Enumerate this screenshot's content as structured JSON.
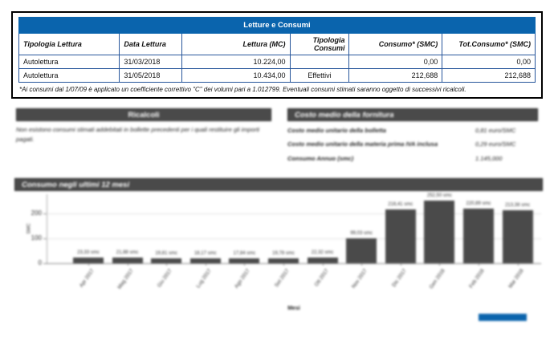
{
  "letture": {
    "title": "Letture e Consumi",
    "columns": [
      "Tipologia Lettura",
      "Data Lettura",
      "Lettura (MC)",
      "Tipologia Consumi",
      "Consumo* (SMC)",
      "Tot.Consumo* (SMC)"
    ],
    "rows": [
      [
        "Autolettura",
        "31/03/2018",
        "10.224,00",
        "",
        "0,00",
        "0,00"
      ],
      [
        "Autolettura",
        "31/05/2018",
        "10.434,00",
        "Effettivi",
        "212,688",
        "212,688"
      ]
    ],
    "footnote": "*Ai consumi dal 1/07/09 è applicato un coefficiente correttivo \"C\" dei volumi pari a 1.012799. Eventuali consumi stimati saranno oggetto di successivi ricalcoli."
  },
  "ricalcoli": {
    "title": "Ricalcoli",
    "body": "Non esistono consumi stimati addebitati in bollette precedenti per i quali restituire gli importi pagati."
  },
  "costo_medio": {
    "title": "Costo medio della fornitura",
    "rows": [
      {
        "label": "Costo medio unitario della bolletta",
        "value": "0,81 euro/SMC"
      },
      {
        "label": "Costo medio unitario della materia prima IVA inclusa",
        "value": "0,29 euro/SMC"
      },
      {
        "label": "Consumo Annuo (smc)",
        "value": "1.145,000"
      }
    ]
  },
  "chart_data": {
    "type": "bar",
    "title": "Consumo negli ultimi 12 mesi",
    "categories": [
      "Apr 2017",
      "Mag 2017",
      "Giu 2017",
      "Lug 2017",
      "Ago 2017",
      "Set 2017",
      "Ott 2017",
      "Nov 2017",
      "Dic 2017",
      "Gen 2018",
      "Feb 2018",
      "Mar 2018"
    ],
    "values": [
      23.33,
      21.88,
      19.81,
      18.17,
      17.84,
      19.78,
      22.32,
      99.03,
      216.41,
      252.5,
      220.89,
      213.38
    ],
    "bar_labels": [
      "23,33 smc",
      "21,88 smc",
      "19,81 smc",
      "18,17 smc",
      "17,84 smc",
      "19,78 smc",
      "22,32 smc",
      "99,03 smc",
      "216,41 smc",
      "252,50 smc",
      "220,89 smc",
      "213,38 smc"
    ],
    "xlabel": "Mesi",
    "ylabel": "SMC",
    "yticks": [
      0,
      100,
      200
    ],
    "ylim": [
      0,
      270
    ],
    "grid": true,
    "legend_position": "none",
    "bar_color": "#4a4a4a"
  },
  "colors": {
    "table_header_blue": "#0a64ad",
    "table_border_blue": "#27569b",
    "section_header_gray": "#4a4a4a",
    "bar_gray": "#4a4a4a"
  }
}
